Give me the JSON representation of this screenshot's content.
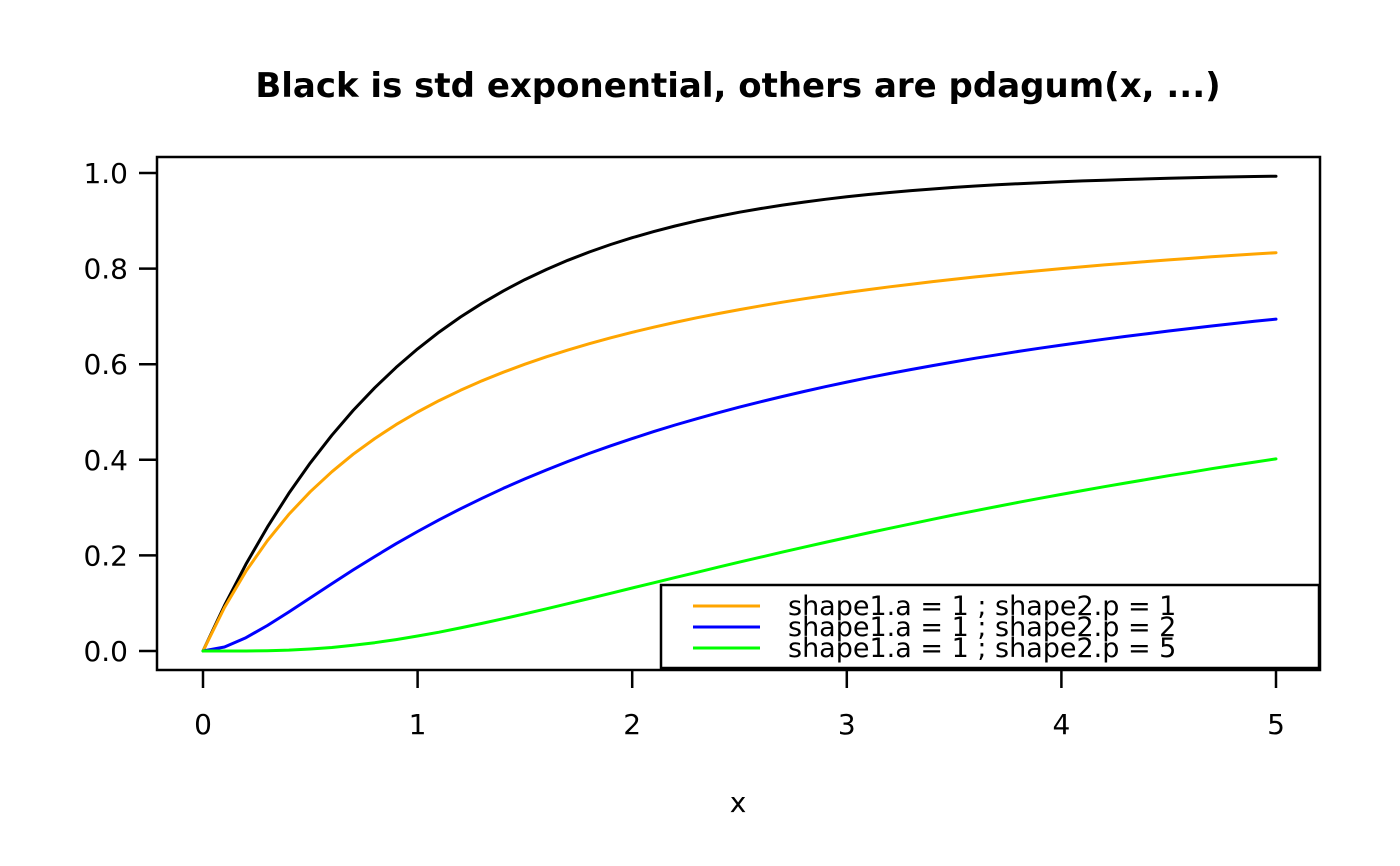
{
  "chart_data": {
    "type": "line",
    "title": "Black is std exponential, others are pdagum(x, ...)",
    "xlabel": "x",
    "ylabel": "",
    "xlim": [
      0,
      5
    ],
    "ylim": [
      0,
      1
    ],
    "grid": false,
    "background": "#ffffff",
    "axis_color": "#000000",
    "xticks": {
      "values": [
        0,
        1,
        2,
        3,
        4,
        5
      ],
      "labels": [
        "0",
        "1",
        "2",
        "3",
        "4",
        "5"
      ]
    },
    "yticks": {
      "values": [
        0,
        0.2,
        0.4,
        0.6,
        0.8,
        1.0
      ],
      "labels": [
        "0.0",
        "0.2",
        "0.4",
        "0.6",
        "0.8",
        "1.0"
      ]
    },
    "x": [
      0,
      0.1,
      0.2,
      0.3,
      0.4,
      0.5,
      0.6,
      0.7,
      0.8,
      0.9,
      1,
      1.1,
      1.2,
      1.3,
      1.4,
      1.5,
      1.6,
      1.7,
      1.8,
      1.9,
      2,
      2.1,
      2.2,
      2.3,
      2.4,
      2.5,
      2.6,
      2.7,
      2.8,
      2.9,
      3,
      3.1,
      3.2,
      3.3,
      3.4,
      3.5,
      3.6,
      3.7,
      3.8,
      3.9,
      4,
      4.1,
      4.2,
      4.3,
      4.4,
      4.5,
      4.6,
      4.7,
      4.8,
      4.9,
      5
    ],
    "series": [
      {
        "id": "std-exponential",
        "name": "std exponential",
        "color": "#000000",
        "values": [
          0,
          0.0952,
          0.1813,
          0.2592,
          0.3297,
          0.3935,
          0.4512,
          0.5034,
          0.5507,
          0.5934,
          0.6321,
          0.6671,
          0.6988,
          0.7275,
          0.7534,
          0.7769,
          0.7981,
          0.8173,
          0.8347,
          0.8504,
          0.8647,
          0.8775,
          0.8892,
          0.8997,
          0.9093,
          0.9179,
          0.9257,
          0.9328,
          0.9392,
          0.945,
          0.9502,
          0.955,
          0.9592,
          0.9631,
          0.9666,
          0.9698,
          0.9727,
          0.9753,
          0.9776,
          0.9798,
          0.9817,
          0.9834,
          0.985,
          0.9864,
          0.9877,
          0.9889,
          0.9899,
          0.9909,
          0.9918,
          0.9926,
          0.9933
        ]
      },
      {
        "id": "dagum-p1",
        "name": "shape1.a = 1 ; shape2.p = 1",
        "color": "#FFA500",
        "values": [
          0,
          0.0909,
          0.1667,
          0.2308,
          0.2857,
          0.3333,
          0.375,
          0.4118,
          0.4444,
          0.4737,
          0.5,
          0.5238,
          0.5455,
          0.5652,
          0.5833,
          0.6,
          0.6154,
          0.6296,
          0.6429,
          0.6552,
          0.6667,
          0.6774,
          0.6875,
          0.697,
          0.7059,
          0.7143,
          0.7222,
          0.7297,
          0.7368,
          0.7436,
          0.75,
          0.7561,
          0.7619,
          0.7674,
          0.7727,
          0.7778,
          0.7826,
          0.7872,
          0.7917,
          0.7959,
          0.8,
          0.8039,
          0.8077,
          0.8113,
          0.8148,
          0.8182,
          0.8214,
          0.8246,
          0.8276,
          0.8305,
          0.8333
        ]
      },
      {
        "id": "dagum-p2",
        "name": "shape1.a = 1 ; shape2.p = 2",
        "color": "#0000FF",
        "values": [
          0,
          0.0083,
          0.0278,
          0.0533,
          0.0816,
          0.1111,
          0.1406,
          0.1696,
          0.1975,
          0.2244,
          0.25,
          0.2744,
          0.2975,
          0.3195,
          0.3403,
          0.36,
          0.3787,
          0.3964,
          0.4133,
          0.4293,
          0.4444,
          0.4589,
          0.4727,
          0.4858,
          0.4983,
          0.5102,
          0.5216,
          0.5325,
          0.5429,
          0.5529,
          0.5625,
          0.5717,
          0.5805,
          0.5889,
          0.5971,
          0.6049,
          0.6125,
          0.6197,
          0.6267,
          0.6335,
          0.64,
          0.6463,
          0.6524,
          0.6582,
          0.6639,
          0.6694,
          0.6747,
          0.6799,
          0.6849,
          0.6897,
          0.6944
        ]
      },
      {
        "id": "dagum-p5",
        "name": "shape1.a = 1 ; shape2.p = 5",
        "color": "#00FF00",
        "values": [
          0,
          0,
          0.0001,
          0.0007,
          0.0019,
          0.0041,
          0.0074,
          0.0121,
          0.0173,
          0.0239,
          0.0313,
          0.0394,
          0.0483,
          0.0577,
          0.0675,
          0.0778,
          0.0883,
          0.099,
          0.1098,
          0.1207,
          0.1317,
          0.1426,
          0.1536,
          0.1645,
          0.1753,
          0.1859,
          0.1965,
          0.2069,
          0.2172,
          0.2273,
          0.2373,
          0.2471,
          0.2567,
          0.2661,
          0.2755,
          0.2847,
          0.2936,
          0.3023,
          0.311,
          0.3194,
          0.3277,
          0.3358,
          0.3438,
          0.3515,
          0.3591,
          0.3667,
          0.3739,
          0.3813,
          0.3882,
          0.3951,
          0.4019
        ]
      }
    ],
    "legend": {
      "position": "bottomright",
      "entries": [
        {
          "label": "shape1.a = 1 ; shape2.p = 1",
          "color": "#FFA500"
        },
        {
          "label": "shape1.a = 1 ; shape2.p = 2",
          "color": "#0000FF"
        },
        {
          "label": "shape1.a = 1 ; shape2.p = 5",
          "color": "#00FF00"
        }
      ]
    }
  }
}
